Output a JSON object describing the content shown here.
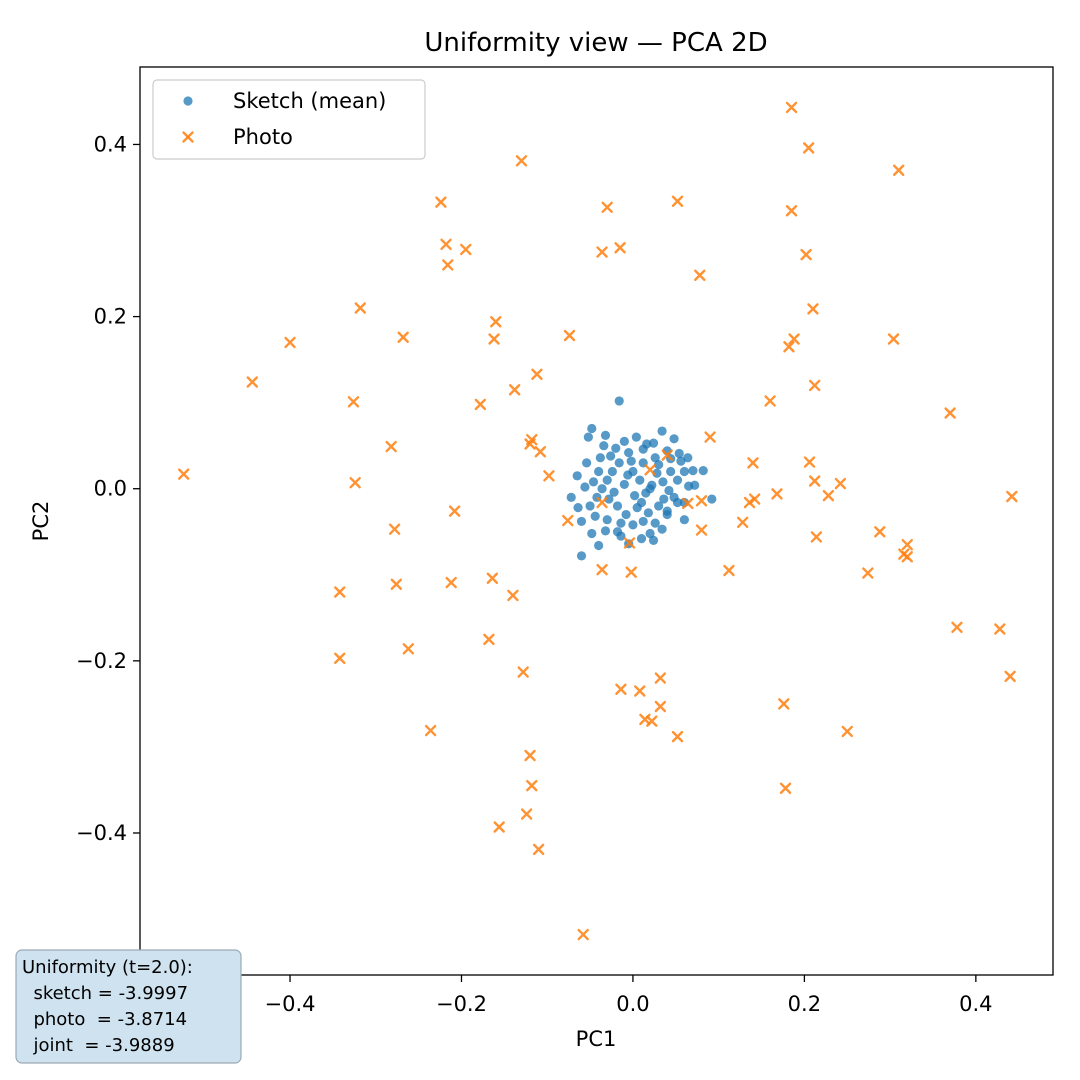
{
  "chart_data": {
    "type": "scatter",
    "title": "Uniformity view — PCA 2D",
    "xlabel": "PC1",
    "ylabel": "PC2",
    "xlim": [
      -0.575,
      0.49
    ],
    "ylim": [
      -0.565,
      0.49
    ],
    "xticks": [
      -0.4,
      -0.2,
      0.0,
      0.2,
      0.4
    ],
    "yticks": [
      -0.4,
      -0.2,
      0.0,
      0.2,
      0.4
    ],
    "xtick_labels": [
      "−0.4",
      "−0.2",
      "0.0",
      "0.2",
      "0.4"
    ],
    "ytick_labels": [
      "−0.4",
      "−0.2",
      "0.0",
      "0.2",
      "0.4"
    ],
    "grid": false,
    "legend_position": "top-left",
    "series": [
      {
        "name": "Sketch (mean)",
        "marker": "circle",
        "color": "#1f77b4",
        "points": [
          [
            -0.016,
            0.102
          ],
          [
            -0.048,
            0.07
          ],
          [
            -0.052,
            0.06
          ],
          [
            -0.032,
            0.062
          ],
          [
            -0.02,
            0.047
          ],
          [
            -0.005,
            0.042
          ],
          [
            0.012,
            0.046
          ],
          [
            0.024,
            0.053
          ],
          [
            0.034,
            0.067
          ],
          [
            0.048,
            0.058
          ],
          [
            0.054,
            0.041
          ],
          [
            0.044,
            0.035
          ],
          [
            0.07,
            0.021
          ],
          [
            0.082,
            0.021
          ],
          [
            0.092,
            -0.012
          ],
          [
            0.065,
            0.003
          ],
          [
            0.06,
            -0.016
          ],
          [
            0.052,
            -0.016
          ],
          [
            0.04,
            -0.03
          ],
          [
            0.034,
            -0.047
          ],
          [
            0.02,
            -0.052
          ],
          [
            0.01,
            -0.058
          ],
          [
            -0.005,
            -0.064
          ],
          [
            -0.018,
            -0.05
          ],
          [
            -0.032,
            -0.049
          ],
          [
            -0.048,
            -0.052
          ],
          [
            -0.06,
            -0.078
          ],
          [
            -0.04,
            -0.066
          ],
          [
            -0.06,
            -0.038
          ],
          [
            -0.072,
            -0.01
          ],
          [
            -0.065,
            0.015
          ],
          [
            -0.054,
            0.03
          ],
          [
            -0.04,
            0.02
          ],
          [
            -0.03,
            0.01
          ],
          [
            -0.022,
            -0.004
          ],
          [
            -0.01,
            0.005
          ],
          [
            0.0,
            0.02
          ],
          [
            0.008,
            0.01
          ],
          [
            0.015,
            -0.005
          ],
          [
            0.022,
            0.004
          ],
          [
            0.028,
            0.018
          ],
          [
            0.035,
            0.008
          ],
          [
            0.042,
            -0.002
          ],
          [
            0.048,
            -0.01
          ],
          [
            0.03,
            -0.02
          ],
          [
            0.018,
            -0.028
          ],
          [
            0.005,
            -0.022
          ],
          [
            -0.008,
            -0.03
          ],
          [
            -0.018,
            -0.02
          ],
          [
            -0.028,
            -0.012
          ],
          [
            -0.036,
            0.0
          ],
          [
            -0.046,
            0.008
          ],
          [
            -0.05,
            -0.02
          ],
          [
            -0.044,
            -0.032
          ],
          [
            -0.03,
            -0.036
          ],
          [
            -0.014,
            -0.04
          ],
          [
            0.0,
            -0.042
          ],
          [
            0.012,
            -0.038
          ],
          [
            0.026,
            -0.04
          ],
          [
            0.04,
            -0.026
          ],
          [
            0.052,
            0.01
          ],
          [
            0.06,
            0.02
          ],
          [
            0.056,
            0.032
          ],
          [
            0.04,
            0.044
          ],
          [
            0.026,
            0.036
          ],
          [
            0.012,
            0.03
          ],
          [
            -0.002,
            0.032
          ],
          [
            -0.016,
            0.03
          ],
          [
            -0.026,
            0.038
          ],
          [
            -0.038,
            0.036
          ],
          [
            -0.056,
            0.002
          ],
          [
            -0.064,
            -0.022
          ],
          [
            0.06,
            -0.036
          ],
          [
            0.072,
            0.004
          ],
          [
            0.004,
            0.06
          ],
          [
            -0.01,
            0.055
          ],
          [
            0.02,
            0.0
          ],
          [
            0.002,
            -0.008
          ],
          [
            -0.006,
            0.016
          ],
          [
            0.03,
            0.028
          ],
          [
            0.01,
            -0.016
          ],
          [
            -0.024,
            0.02
          ],
          [
            0.044,
            0.02
          ],
          [
            0.036,
            -0.012
          ],
          [
            -0.042,
            -0.01
          ],
          [
            0.016,
            0.052
          ],
          [
            -0.014,
            -0.055
          ],
          [
            0.024,
            -0.06
          ],
          [
            -0.034,
            0.05
          ],
          [
            0.064,
            0.036
          ]
        ]
      },
      {
        "name": "Photo",
        "marker": "x",
        "color": "#ff7f0e",
        "points": [
          [
            0.185,
            0.443
          ],
          [
            0.205,
            0.396
          ],
          [
            -0.13,
            0.381
          ],
          [
            0.31,
            0.37
          ],
          [
            -0.224,
            0.333
          ],
          [
            0.052,
            0.334
          ],
          [
            -0.03,
            0.327
          ],
          [
            0.185,
            0.323
          ],
          [
            -0.218,
            0.284
          ],
          [
            -0.195,
            0.278
          ],
          [
            -0.015,
            0.28
          ],
          [
            -0.036,
            0.275
          ],
          [
            0.202,
            0.272
          ],
          [
            -0.216,
            0.26
          ],
          [
            0.078,
            0.248
          ],
          [
            -0.318,
            0.21
          ],
          [
            0.21,
            0.209
          ],
          [
            -0.16,
            0.194
          ],
          [
            -0.4,
            0.17
          ],
          [
            -0.268,
            0.176
          ],
          [
            -0.162,
            0.174
          ],
          [
            -0.074,
            0.178
          ],
          [
            0.188,
            0.174
          ],
          [
            0.182,
            0.165
          ],
          [
            0.304,
            0.174
          ],
          [
            -0.444,
            0.124
          ],
          [
            -0.112,
            0.133
          ],
          [
            0.212,
            0.12
          ],
          [
            -0.138,
            0.115
          ],
          [
            -0.326,
            0.101
          ],
          [
            -0.178,
            0.098
          ],
          [
            0.16,
            0.102
          ],
          [
            0.37,
            0.088
          ],
          [
            -0.118,
            0.057
          ],
          [
            -0.12,
            0.052
          ],
          [
            0.09,
            0.06
          ],
          [
            -0.282,
            0.049
          ],
          [
            -0.108,
            0.043
          ],
          [
            0.04,
            0.039
          ],
          [
            -0.524,
            0.017
          ],
          [
            0.02,
            0.022
          ],
          [
            -0.098,
            0.015
          ],
          [
            0.14,
            0.03
          ],
          [
            0.206,
            0.031
          ],
          [
            -0.324,
            0.007
          ],
          [
            0.212,
            0.009
          ],
          [
            0.242,
            0.006
          ],
          [
            0.228,
            -0.008
          ],
          [
            0.442,
            -0.009
          ],
          [
            0.168,
            -0.006
          ],
          [
            0.142,
            -0.012
          ],
          [
            0.136,
            -0.016
          ],
          [
            0.08,
            -0.014
          ],
          [
            0.064,
            -0.017
          ],
          [
            -0.036,
            -0.016
          ],
          [
            -0.208,
            -0.026
          ],
          [
            -0.076,
            -0.037
          ],
          [
            0.128,
            -0.039
          ],
          [
            -0.278,
            -0.047
          ],
          [
            0.08,
            -0.048
          ],
          [
            0.288,
            -0.05
          ],
          [
            0.214,
            -0.056
          ],
          [
            -0.004,
            -0.063
          ],
          [
            0.32,
            -0.065
          ],
          [
            0.316,
            -0.076
          ],
          [
            0.32,
            -0.079
          ],
          [
            -0.036,
            -0.094
          ],
          [
            -0.002,
            -0.097
          ],
          [
            0.112,
            -0.095
          ],
          [
            0.274,
            -0.098
          ],
          [
            -0.164,
            -0.104
          ],
          [
            -0.212,
            -0.109
          ],
          [
            -0.276,
            -0.111
          ],
          [
            -0.342,
            -0.12
          ],
          [
            -0.14,
            -0.124
          ],
          [
            0.378,
            -0.161
          ],
          [
            0.428,
            -0.163
          ],
          [
            -0.168,
            -0.175
          ],
          [
            -0.262,
            -0.186
          ],
          [
            -0.342,
            -0.197
          ],
          [
            -0.128,
            -0.213
          ],
          [
            0.44,
            -0.218
          ],
          [
            0.032,
            -0.22
          ],
          [
            -0.014,
            -0.233
          ],
          [
            0.008,
            -0.235
          ],
          [
            0.176,
            -0.25
          ],
          [
            0.032,
            -0.253
          ],
          [
            0.014,
            -0.268
          ],
          [
            0.022,
            -0.27
          ],
          [
            -0.236,
            -0.281
          ],
          [
            0.25,
            -0.282
          ],
          [
            0.052,
            -0.288
          ],
          [
            -0.12,
            -0.31
          ],
          [
            -0.118,
            -0.345
          ],
          [
            0.178,
            -0.348
          ],
          [
            -0.124,
            -0.378
          ],
          [
            -0.156,
            -0.393
          ],
          [
            -0.11,
            -0.419
          ],
          [
            -0.058,
            -0.518
          ]
        ]
      }
    ]
  },
  "stats_box": {
    "lines": [
      "Uniformity (t=2.0):",
      "  sketch = -3.9997",
      "  photo  = -3.8714",
      "  joint  = -3.9889"
    ]
  }
}
